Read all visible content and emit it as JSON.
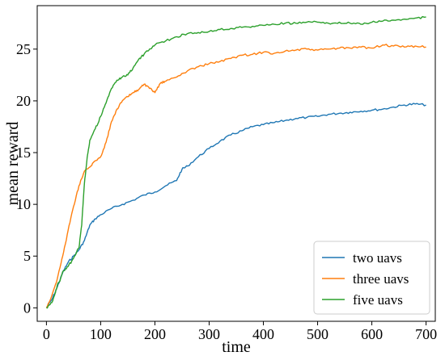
{
  "chart_data": {
    "type": "line",
    "xlabel": "time",
    "ylabel": "mean reward",
    "xlim": [
      -17,
      717
    ],
    "ylim": [
      -1.3,
      29.2
    ],
    "xticks": [
      0,
      100,
      200,
      300,
      400,
      500,
      600,
      700
    ],
    "yticks": [
      0,
      5,
      10,
      15,
      20,
      25
    ],
    "legend_position": "lower-right",
    "series": [
      {
        "name": "two uavs",
        "color": "#1f77b4",
        "x": [
          0,
          10,
          20,
          30,
          40,
          50,
          60,
          70,
          80,
          90,
          100,
          120,
          140,
          160,
          180,
          200,
          220,
          240,
          250,
          260,
          280,
          300,
          320,
          340,
          360,
          380,
          400,
          420,
          440,
          460,
          480,
          500,
          520,
          540,
          560,
          580,
          600,
          620,
          640,
          660,
          680,
          700
        ],
        "y": [
          0,
          0.8,
          2.0,
          3.4,
          4.4,
          5.0,
          5.6,
          6.5,
          8.0,
          8.6,
          9.0,
          9.6,
          10.0,
          10.4,
          10.9,
          11.2,
          11.8,
          12.3,
          13.4,
          13.7,
          14.6,
          15.4,
          16.1,
          16.7,
          17.1,
          17.5,
          17.7,
          17.9,
          18.1,
          18.3,
          18.4,
          18.5,
          18.7,
          18.8,
          18.9,
          19.0,
          19.1,
          19.2,
          19.4,
          19.6,
          19.7,
          19.6
        ]
      },
      {
        "name": "three uavs",
        "color": "#ff7f0e",
        "x": [
          0,
          10,
          20,
          30,
          40,
          50,
          60,
          70,
          80,
          90,
          100,
          110,
          120,
          130,
          140,
          150,
          160,
          170,
          180,
          190,
          200,
          210,
          220,
          240,
          260,
          280,
          300,
          320,
          340,
          360,
          380,
          400,
          420,
          440,
          460,
          480,
          500,
          520,
          540,
          560,
          580,
          600,
          620,
          640,
          660,
          680,
          700
        ],
        "y": [
          0,
          1.2,
          2.8,
          5.0,
          7.5,
          9.8,
          11.8,
          13.2,
          13.6,
          14.2,
          14.6,
          16.0,
          18.0,
          19.2,
          20.0,
          20.4,
          20.8,
          21.1,
          21.6,
          21.2,
          20.8,
          21.7,
          21.9,
          22.3,
          22.9,
          23.3,
          23.6,
          23.8,
          24.1,
          24.4,
          24.5,
          24.7,
          24.6,
          24.8,
          24.9,
          25.0,
          24.9,
          25.0,
          25.1,
          25.1,
          25.2,
          25.1,
          25.4,
          25.3,
          25.2,
          25.3,
          25.2
        ]
      },
      {
        "name": "five uavs",
        "color": "#2ca02c",
        "x": [
          0,
          10,
          15,
          20,
          25,
          30,
          40,
          50,
          60,
          65,
          70,
          75,
          80,
          90,
          100,
          110,
          120,
          130,
          140,
          150,
          160,
          170,
          180,
          190,
          200,
          220,
          240,
          260,
          280,
          300,
          320,
          340,
          360,
          380,
          400,
          420,
          440,
          460,
          480,
          500,
          520,
          540,
          560,
          580,
          600,
          620,
          640,
          660,
          680,
          700
        ],
        "y": [
          0,
          0.5,
          1.2,
          2.2,
          2.6,
          3.5,
          4.0,
          4.8,
          5.8,
          8.0,
          12.0,
          14.5,
          16.2,
          17.3,
          18.5,
          19.8,
          21.2,
          22.0,
          22.3,
          22.5,
          23.2,
          24.0,
          24.5,
          25.0,
          25.4,
          25.8,
          26.2,
          26.5,
          26.6,
          26.7,
          26.9,
          27.0,
          27.1,
          27.2,
          27.3,
          27.4,
          27.5,
          27.5,
          27.6,
          27.6,
          27.5,
          27.6,
          27.5,
          27.4,
          27.6,
          27.7,
          27.8,
          27.9,
          28.0,
          28.1
        ]
      }
    ]
  }
}
